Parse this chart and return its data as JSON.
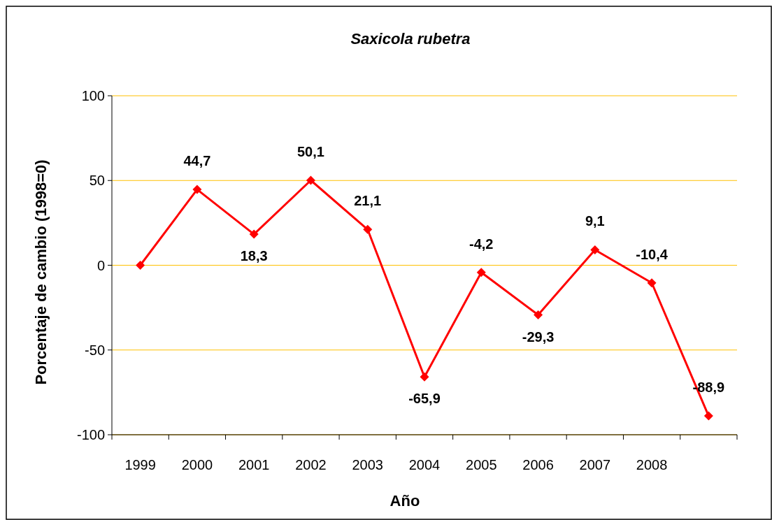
{
  "chart_data": {
    "type": "line",
    "title": "Saxicola rubetra",
    "xlabel": "Año",
    "ylabel": "Porcentaje de cambio (1998=0)",
    "categories": [
      "1999",
      "2000",
      "2001",
      "2002",
      "2003",
      "2004",
      "2005",
      "2006",
      "2007",
      "2008",
      null
    ],
    "series": [
      {
        "color": "#ff0000",
        "values": [
          0,
          44.7,
          18.3,
          50.1,
          21.1,
          -65.9,
          -4.2,
          -29.3,
          9.1,
          -10.4,
          -88.9
        ],
        "value_labels": [
          null,
          "44,7",
          "18,3",
          "50,1",
          "21,1",
          "-65,9",
          "-4,2",
          "-29,3",
          "9,1",
          "-10,4",
          "-88,9"
        ]
      }
    ],
    "ylim": [
      -100,
      100
    ],
    "yticks": [
      -100,
      -50,
      0,
      50,
      100
    ],
    "grid": "y",
    "marker": "diamond",
    "line_style": "solid"
  }
}
